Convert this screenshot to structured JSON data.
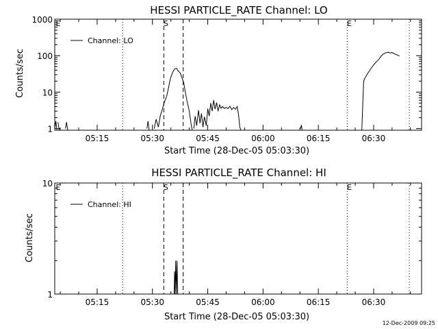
{
  "chart_data": [
    {
      "type": "line",
      "title": "HESSI PARTICLE_RATE Channel: LO",
      "xlabel": "Start Time (28-Dec-05 05:03:30)",
      "ylabel": "Counts/sec",
      "yscale": "log",
      "ylim": [
        0.9,
        1000
      ],
      "xlim_minutes_of_day": [
        303.5,
        403
      ],
      "x_tick_labels": [
        "05:15",
        "05:30",
        "05:45",
        "06:00",
        "06:15",
        "06:30"
      ],
      "x_tick_minutes": [
        315,
        330,
        345,
        360,
        375,
        390
      ],
      "y_tick_labels": [
        "1",
        "10",
        "100",
        "1000"
      ],
      "y_tick_values": [
        1,
        10,
        100,
        1000
      ],
      "legend": {
        "label": "Channel: LO",
        "position": "top-left"
      },
      "markers": [
        {
          "time": "05:21:55",
          "style": "dotted",
          "label": ""
        },
        {
          "time": "05:33:05",
          "style": "dashed",
          "label": "S"
        },
        {
          "time": "05:38:20",
          "style": "dashed",
          "label": ""
        },
        {
          "time": "06:22:50",
          "style": "dotted",
          "label": "E"
        },
        {
          "time": "06:39:40",
          "style": "dotted",
          "label": ""
        }
      ],
      "edge_labels": [
        {
          "time": "05:03:30",
          "label": "E"
        }
      ],
      "series": [
        {
          "name": "Channel: LO",
          "segments": [
            [
              [
                303.5,
                1.0
              ],
              [
                303.8,
                1.6
              ],
              [
                304.1,
                0.9
              ]
            ],
            [
              [
                304.4,
                1.5
              ],
              [
                304.7,
                0.9
              ]
            ],
            [
              [
                306.4,
                1.0
              ],
              [
                306.7,
                1.5
              ],
              [
                307.0,
                0.9
              ]
            ],
            [
              [
                328.5,
                1.0
              ],
              [
                328.8,
                1.6
              ],
              [
                329.1,
                0.9
              ]
            ],
            [
              [
                330.5,
                1.0
              ],
              [
                331.0,
                1.8
              ],
              [
                331.6,
                1.1
              ],
              [
                332.1,
                2.2
              ],
              [
                332.6,
                3.2
              ],
              [
                333.3,
                5.5
              ],
              [
                333.9,
                8.0
              ],
              [
                334.4,
                14.0
              ],
              [
                334.9,
                24.0
              ],
              [
                335.4,
                33.0
              ],
              [
                335.9,
                42.0
              ],
              [
                336.5,
                45.0
              ],
              [
                337.0,
                38.0
              ],
              [
                337.5,
                34.0
              ],
              [
                338.0,
                25.0
              ],
              [
                338.5,
                18.0
              ],
              [
                339.0,
                9.0
              ],
              [
                339.5,
                5.0
              ],
              [
                340.0,
                3.0
              ],
              [
                340.4,
                1.5
              ],
              [
                340.8,
                0.9
              ]
            ],
            [
              [
                341.2,
                1.0
              ],
              [
                341.6,
                2.2
              ],
              [
                342.0,
                1.2
              ],
              [
                342.5,
                3.2
              ],
              [
                342.9,
                1.4
              ],
              [
                343.3,
                2.6
              ],
              [
                343.7,
                1.1
              ],
              [
                344.1,
                2.1
              ],
              [
                344.6,
                1.2
              ],
              [
                345.0,
                3.5
              ],
              [
                345.4,
                2.2
              ],
              [
                345.8,
                5.0
              ],
              [
                346.2,
                3.0
              ],
              [
                346.6,
                6.0
              ],
              [
                347.0,
                3.4
              ],
              [
                347.4,
                5.2
              ],
              [
                347.8,
                3.0
              ],
              [
                348.2,
                4.5
              ],
              [
                348.6,
                3.6
              ],
              [
                349.0,
                4.0
              ],
              [
                349.5,
                3.6
              ],
              [
                350.0,
                3.8
              ],
              [
                350.5,
                3.5
              ],
              [
                351.0,
                4.1
              ],
              [
                351.5,
                3.3
              ],
              [
                352.0,
                3.8
              ],
              [
                352.5,
                3.4
              ],
              [
                353.0,
                4.0
              ],
              [
                353.4,
                2.2
              ],
              [
                353.7,
                1.1
              ],
              [
                354.0,
                0.9
              ]
            ],
            [
              [
                370.2,
                1.0
              ],
              [
                370.4,
                1.25
              ],
              [
                370.6,
                0.9
              ]
            ],
            [
              [
                386.8,
                0.9
              ],
              [
                387.1,
                6.0
              ],
              [
                387.3,
                20.0
              ],
              [
                387.6,
                24.0
              ],
              [
                388.0,
                28.0
              ],
              [
                388.5,
                34.0
              ],
              [
                389.0,
                40.0
              ],
              [
                389.5,
                48.0
              ],
              [
                390.0,
                56.0
              ],
              [
                390.5,
                64.0
              ],
              [
                391.0,
                72.0
              ],
              [
                391.5,
                82.0
              ],
              [
                392.0,
                96.0
              ],
              [
                392.5,
                108.0
              ],
              [
                393.0,
                116.0
              ],
              [
                393.5,
                122.0
              ],
              [
                394.0,
                124.0
              ],
              [
                394.5,
                118.0
              ],
              [
                395.0,
                122.0
              ],
              [
                395.5,
                114.0
              ],
              [
                396.0,
                108.0
              ],
              [
                396.5,
                104.0
              ],
              [
                397.0,
                98.0
              ]
            ]
          ]
        }
      ]
    },
    {
      "type": "line",
      "title": "HESSI PARTICLE_RATE Channel: HI",
      "xlabel": "Start Time (28-Dec-05 05:03:30)",
      "ylabel": "Counts/sec",
      "yscale": "log",
      "ylim": [
        1,
        10
      ],
      "xlim_minutes_of_day": [
        303.5,
        403
      ],
      "x_tick_labels": [
        "05:15",
        "05:30",
        "05:45",
        "06:00",
        "06:15",
        "06:30"
      ],
      "x_tick_minutes": [
        315,
        330,
        345,
        360,
        375,
        390
      ],
      "y_tick_labels": [
        "1",
        "10"
      ],
      "y_tick_values": [
        1,
        10
      ],
      "legend": {
        "label": "Channel: HI",
        "position": "top-left"
      },
      "markers": [
        {
          "time": "05:21:55",
          "style": "dotted",
          "label": ""
        },
        {
          "time": "05:33:05",
          "style": "dashed",
          "label": "S"
        },
        {
          "time": "05:38:20",
          "style": "dashed",
          "label": ""
        },
        {
          "time": "06:22:50",
          "style": "dotted",
          "label": "E"
        },
        {
          "time": "06:39:40",
          "style": "dotted",
          "label": ""
        }
      ],
      "edge_labels": [
        {
          "time": "05:03:30",
          "label": "E"
        }
      ],
      "series": [
        {
          "name": "Channel: HI",
          "segments": [
            [
              [
                335.9,
                1.0
              ],
              [
                336.0,
                1.6
              ],
              [
                336.15,
                1.0
              ],
              [
                336.3,
                2.0
              ],
              [
                336.5,
                1.0
              ],
              [
                336.65,
                2.0
              ],
              [
                336.85,
                1.0
              ]
            ]
          ]
        }
      ]
    }
  ],
  "footer": {
    "timestamp": "12-Dec-2009 09:25"
  }
}
